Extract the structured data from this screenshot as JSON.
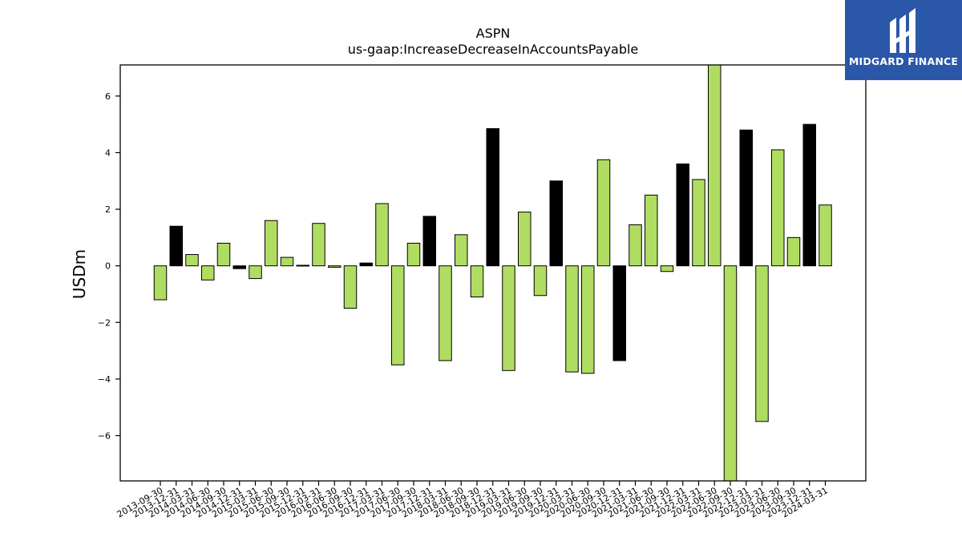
{
  "chart_data": {
    "type": "bar",
    "title": "ASPN",
    "subtitle": "us-gaap:IncreaseDecreaseInAccountsPayable",
    "ylabel": "USDm",
    "xlabel": "",
    "ylim": [
      -7.6,
      7.1
    ],
    "yticks": [
      -6,
      -4,
      -2,
      0,
      2,
      4,
      6
    ],
    "grid": false,
    "categories": [
      "2013-09-30",
      "2013-12-31",
      "2014-03-31",
      "2014-06-30",
      "2014-09-30",
      "2014-12-31",
      "2015-03-31",
      "2015-06-30",
      "2015-09-30",
      "2015-12-31",
      "2016-03-31",
      "2016-06-30",
      "2016-09-30",
      "2016-12-31",
      "2017-03-31",
      "2017-06-30",
      "2017-09-30",
      "2017-12-31",
      "2018-03-31",
      "2018-06-30",
      "2018-09-30",
      "2018-12-31",
      "2019-03-31",
      "2019-06-30",
      "2019-09-30",
      "2019-12-31",
      "2020-03-31",
      "2020-06-30",
      "2020-09-30",
      "2020-12-31",
      "2021-03-31",
      "2021-06-30",
      "2021-09-30",
      "2021-12-31",
      "2022-03-31",
      "2022-06-30",
      "2022-09-30",
      "2022-12-31",
      "2023-03-31",
      "2023-06-30",
      "2023-09-30",
      "2023-12-31",
      "2024-03-31"
    ],
    "values": [
      -1.2,
      1.4,
      0.4,
      -0.5,
      0.8,
      -0.1,
      -0.45,
      1.6,
      0.3,
      0.02,
      1.5,
      -0.05,
      -1.5,
      0.1,
      2.2,
      -3.5,
      0.8,
      1.75,
      -3.35,
      1.1,
      -1.1,
      4.85,
      -3.7,
      1.9,
      -1.05,
      3.0,
      -3.75,
      -3.8,
      3.75,
      -3.35,
      1.45,
      2.5,
      -0.2,
      3.6,
      3.05,
      7.1,
      -7.6,
      4.8,
      -5.5,
      4.1,
      1.0,
      5.0,
      2.15
    ],
    "highlight_indices": [
      1,
      5,
      9,
      13,
      17,
      21,
      25,
      29,
      33,
      37,
      41
    ],
    "colors": {
      "bar": "#b0dc62",
      "highlight": "#000000",
      "edge": "#000000"
    }
  },
  "logo": {
    "text": "MIDGARD FINANCE"
  }
}
